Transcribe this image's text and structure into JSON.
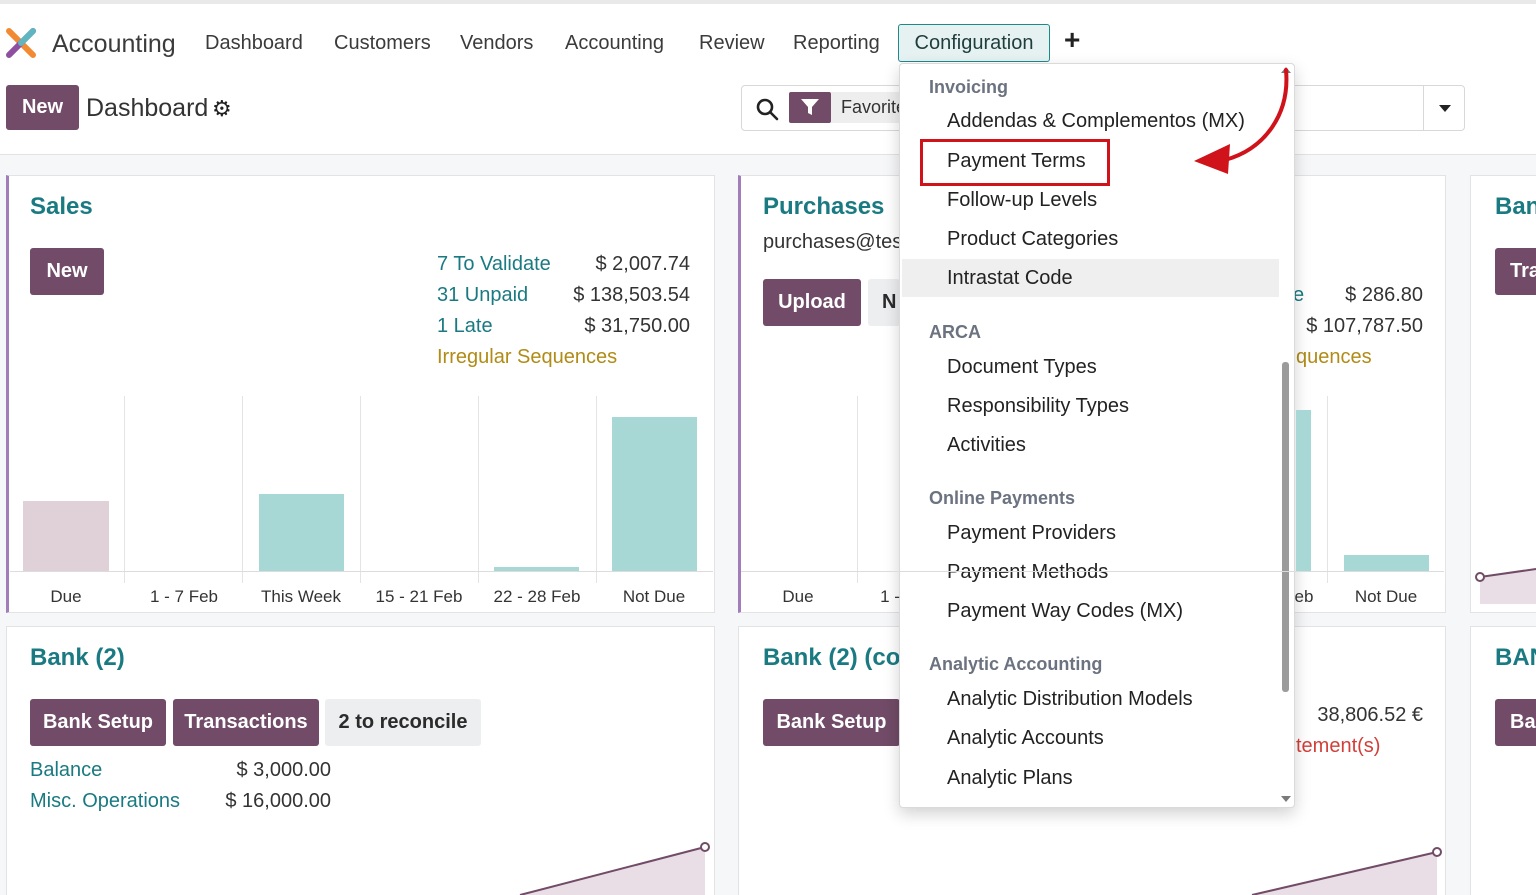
{
  "navbar": {
    "app_title": "Accounting",
    "items": [
      "Dashboard",
      "Customers",
      "Vendors",
      "Accounting",
      "Review",
      "Reporting"
    ],
    "active_item": "Configuration",
    "plus_label": "+"
  },
  "control": {
    "new_label": "New",
    "page_title": "Dashboard",
    "favorites_label": "Favorites"
  },
  "sales": {
    "title": "Sales",
    "new_label": "New",
    "stats": [
      {
        "label": "7 To Validate",
        "amount": "$ 2,007.74"
      },
      {
        "label": "31 Unpaid",
        "amount": "$ 138,503.54"
      },
      {
        "label": "1 Late",
        "amount": "$ 31,750.00"
      }
    ],
    "irregular_label": "Irregular Sequences"
  },
  "purchases": {
    "title": "Purchases",
    "email": "purchases@tes",
    "upload_label": "Upload",
    "new_partial": "N",
    "amounts": [
      "$ 286.80",
      "$ 107,787.50"
    ],
    "partial_link": "e",
    "sequences_partial": "quences"
  },
  "bank_partial_title": "Ban",
  "bank_partial_btn": "Tra",
  "bank2": {
    "title": "Bank (2)",
    "buttons": [
      "Bank Setup",
      "Transactions"
    ],
    "reconcile_label": "2 to reconcile",
    "rows": [
      {
        "label": "Balance",
        "amount": "$ 3,000.00"
      },
      {
        "label": "Misc. Operations",
        "amount": "$ 16,000.00"
      }
    ]
  },
  "bank2co": {
    "title": "Bank (2) (co",
    "setup_label": "Bank Setup",
    "amount": "38,806.52 €",
    "statements_partial": "tement(s)"
  },
  "ban_partial_title": "BAN",
  "ban_partial_btn": "Ba",
  "chart_data": [
    {
      "type": "bar",
      "categories": [
        "Due",
        "1 - 7 Feb",
        "This Week",
        "15 - 21 Feb",
        "22 - 28 Feb",
        "Not Due"
      ],
      "values": [
        0.4,
        0,
        0.44,
        0,
        0.02,
        0.88
      ],
      "series_colors": [
        "#e0d0d8",
        "#a7d8d6",
        "#a7d8d6",
        "#a7d8d6",
        "#a7d8d6",
        "#a7d8d6"
      ],
      "ylim": [
        0,
        1
      ]
    },
    {
      "type": "bar",
      "categories": [
        "Due",
        "1 -",
        "eb",
        "Not Due"
      ],
      "visible_labels": [
        "Due",
        "1 -",
        "eb",
        "Not Due"
      ],
      "values": [
        0,
        0,
        0.92,
        0.09
      ],
      "ylim": [
        0,
        1
      ]
    }
  ],
  "dropdown": {
    "sections": [
      {
        "header": "Invoicing",
        "items": [
          "Addendas & Complementos (MX)",
          "Payment Terms",
          "Follow-up Levels",
          "Product Categories",
          "Intrastat Code"
        ]
      },
      {
        "header": "ARCA",
        "items": [
          "Document Types",
          "Responsibility Types",
          "Activities"
        ]
      },
      {
        "header": "Online Payments",
        "items": [
          "Payment Providers",
          "Payment Methods",
          "Payment Way Codes (MX)"
        ]
      },
      {
        "header": "Analytic Accounting",
        "items": [
          "Analytic Distribution Models",
          "Analytic Accounts",
          "Analytic Plans"
        ]
      }
    ],
    "highlighted": "Payment Terms",
    "hovered": "Intrastat Code"
  },
  "colors": {
    "primary": "#714b67",
    "teal": "#1a7a82",
    "bar": "#a7d8d6",
    "annotation": "#d0121b"
  }
}
